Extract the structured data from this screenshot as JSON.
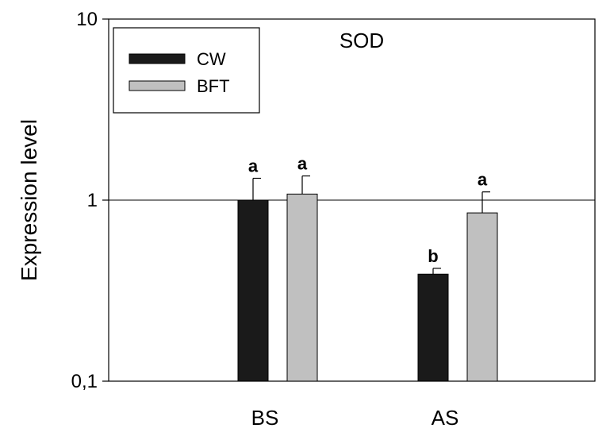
{
  "chart_data": {
    "type": "bar",
    "title": "SOD",
    "xlabel": "",
    "ylabel": "Expression level",
    "yscale": "log",
    "ylim": [
      0.1,
      10
    ],
    "yticks": [
      {
        "value": 0.1,
        "label": "0,1"
      },
      {
        "value": 1,
        "label": "1"
      },
      {
        "value": 10,
        "label": "10"
      }
    ],
    "reference_line": 1,
    "categories": [
      "BS",
      "AS"
    ],
    "series": [
      {
        "name": "CW",
        "color": "#1a1a1a",
        "values": [
          1.0,
          0.39
        ],
        "errors": [
          0.32,
          0.03
        ],
        "significance": [
          "a",
          "b"
        ]
      },
      {
        "name": "BFT",
        "color": "#c0c0c0",
        "values": [
          1.08,
          0.85
        ],
        "errors": [
          0.28,
          0.26
        ],
        "significance": [
          "a",
          "a"
        ]
      }
    ],
    "legend_position": "top-left"
  }
}
